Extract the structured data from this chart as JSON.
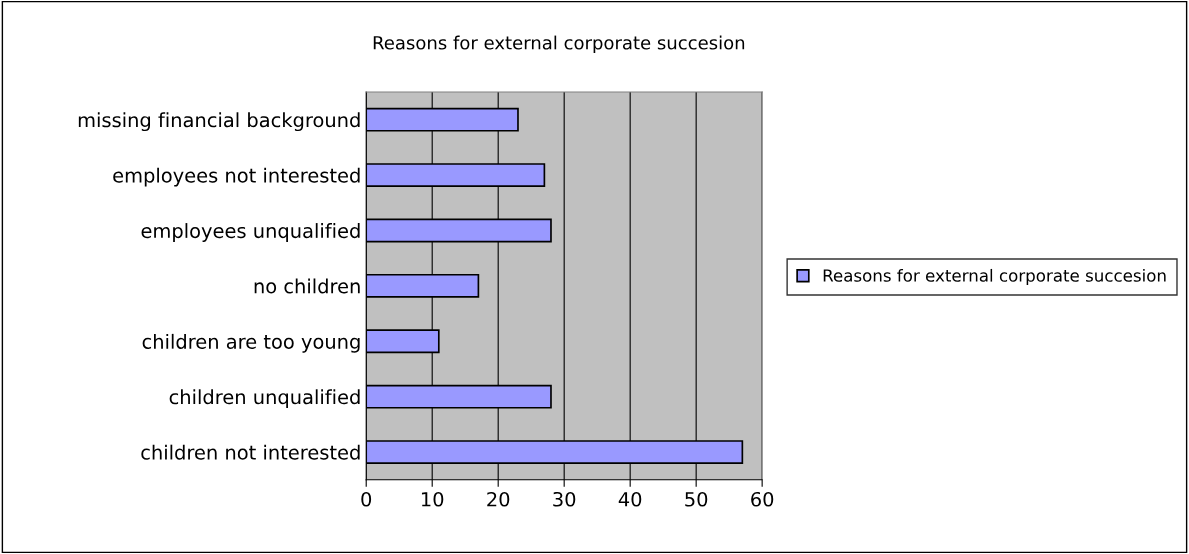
{
  "chart_data": {
    "type": "bar",
    "orientation": "horizontal",
    "title": "Reasons for external corporate succesion",
    "categories": [
      "missing financial background",
      "employees not interested",
      "employees unqualified",
      "no children",
      "children are too young",
      "children unqualified",
      "children not interested"
    ],
    "series": [
      {
        "name": "Reasons for external corporate succesion",
        "color": "#9999ff",
        "values": [
          23,
          27,
          28,
          17,
          11,
          28,
          57
        ]
      }
    ],
    "xlim": [
      0,
      60
    ],
    "xticks": [
      0,
      10,
      20,
      30,
      40,
      50,
      60
    ],
    "grid": "x",
    "legend": "right"
  }
}
